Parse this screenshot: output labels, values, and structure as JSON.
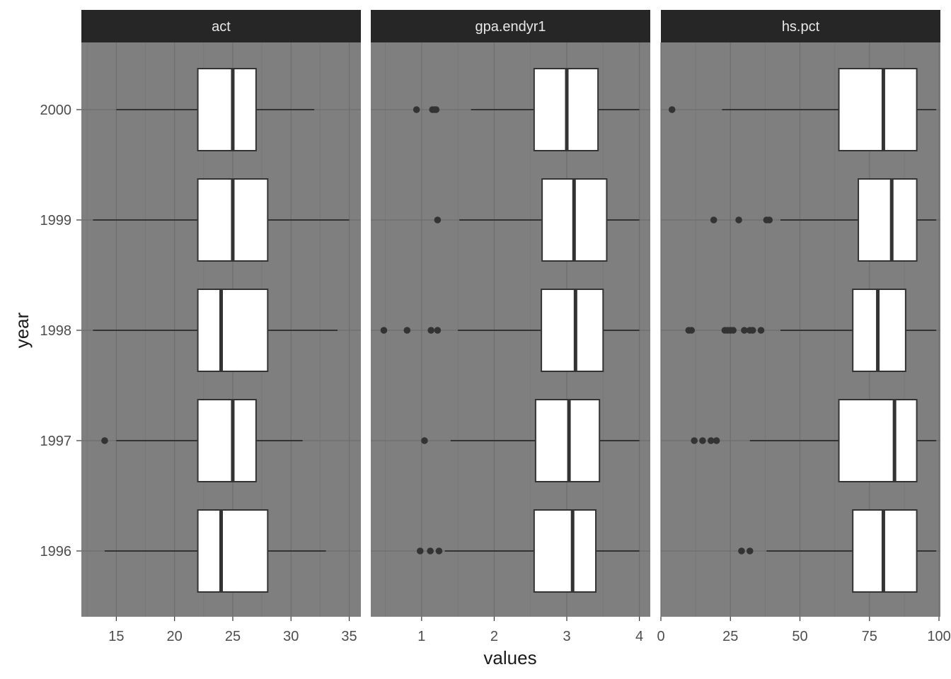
{
  "chart_data": {
    "type": "boxplot",
    "orientation": "horizontal",
    "xlabel": "values",
    "ylabel": "year",
    "categories": [
      "1996",
      "1997",
      "1998",
      "1999",
      "2000"
    ],
    "colors": {
      "panel_background": "#7f7f7f",
      "strip_background": "#262626",
      "strip_text": "#e8e8e8",
      "box_fill": "#ffffff",
      "box_line": "#333333",
      "grid_major": "#6e6e6e",
      "grid_minor": "#777777"
    },
    "grid": true,
    "facets": [
      {
        "name": "act",
        "xlim": [
          12,
          36
        ],
        "ticks": [
          15,
          20,
          25,
          30,
          35
        ],
        "boxes": [
          {
            "year": "1996",
            "whisker_low": 14,
            "q1": 22,
            "median": 24,
            "q3": 28,
            "whisker_high": 33,
            "outliers": []
          },
          {
            "year": "1997",
            "whisker_low": 15,
            "q1": 22,
            "median": 25,
            "q3": 27,
            "whisker_high": 31,
            "outliers": [
              14
            ]
          },
          {
            "year": "1998",
            "whisker_low": 13,
            "q1": 22,
            "median": 24,
            "q3": 28,
            "whisker_high": 34,
            "outliers": []
          },
          {
            "year": "1999",
            "whisker_low": 13,
            "q1": 22,
            "median": 25,
            "q3": 28,
            "whisker_high": 35,
            "outliers": []
          },
          {
            "year": "2000",
            "whisker_low": 15,
            "q1": 22,
            "median": 25,
            "q3": 27,
            "whisker_high": 32,
            "outliers": []
          }
        ]
      },
      {
        "name": "gpa.endyr1",
        "xlim": [
          0.3,
          4.15
        ],
        "ticks": [
          1,
          2,
          3,
          4
        ],
        "boxes": [
          {
            "year": "1996",
            "whisker_low": 1.32,
            "q1": 2.55,
            "median": 3.08,
            "q3": 3.4,
            "whisker_high": 4.0,
            "outliers": [
              0.98,
              1.12,
              1.24
            ]
          },
          {
            "year": "1997",
            "whisker_low": 1.4,
            "q1": 2.57,
            "median": 3.03,
            "q3": 3.45,
            "whisker_high": 4.0,
            "outliers": [
              1.04
            ]
          },
          {
            "year": "1998",
            "whisker_low": 1.5,
            "q1": 2.65,
            "median": 3.12,
            "q3": 3.5,
            "whisker_high": 4.0,
            "outliers": [
              0.48,
              0.8,
              1.13,
              1.22
            ]
          },
          {
            "year": "1999",
            "whisker_low": 1.52,
            "q1": 2.66,
            "median": 3.1,
            "q3": 3.55,
            "whisker_high": 4.0,
            "outliers": [
              1.22
            ]
          },
          {
            "year": "2000",
            "whisker_low": 1.68,
            "q1": 2.55,
            "median": 3.0,
            "q3": 3.43,
            "whisker_high": 4.0,
            "outliers": [
              0.93,
              1.15,
              1.18,
              1.2
            ]
          }
        ]
      },
      {
        "name": "hs.pct",
        "xlim": [
          0,
          100.5
        ],
        "ticks": [
          0,
          25,
          50,
          75,
          100
        ],
        "boxes": [
          {
            "year": "1996",
            "whisker_low": 38,
            "q1": 69,
            "median": 80,
            "q3": 92,
            "whisker_high": 99,
            "outliers": [
              29,
              32
            ]
          },
          {
            "year": "1997",
            "whisker_low": 32,
            "q1": 64,
            "median": 84,
            "q3": 92,
            "whisker_high": 99,
            "outliers": [
              12,
              15,
              18,
              20
            ]
          },
          {
            "year": "1998",
            "whisker_low": 43,
            "q1": 69,
            "median": 78,
            "q3": 88,
            "whisker_high": 99,
            "outliers": [
              10,
              11,
              23,
              24,
              25,
              26,
              30,
              32,
              33,
              36
            ]
          },
          {
            "year": "1999",
            "whisker_low": 43,
            "q1": 71,
            "median": 83,
            "q3": 92,
            "whisker_high": 99,
            "outliers": [
              19,
              28,
              38,
              39
            ]
          },
          {
            "year": "2000",
            "whisker_low": 22,
            "q1": 64,
            "median": 80,
            "q3": 92,
            "whisker_high": 99,
            "outliers": [
              4
            ]
          }
        ]
      }
    ]
  }
}
